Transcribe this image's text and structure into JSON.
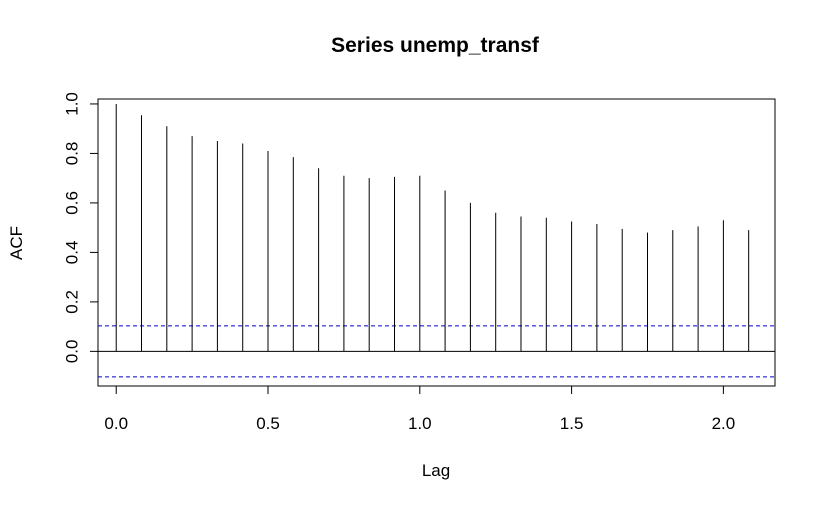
{
  "chart_data": {
    "type": "bar",
    "subtype": "acf-stem",
    "title": "Series  unemp_transf",
    "xlabel": "Lag",
    "ylabel": "ACF",
    "xlim": [
      -0.06,
      2.17
    ],
    "ylim": [
      -0.14,
      1.02
    ],
    "x_ticks": [
      0.0,
      0.5,
      1.0,
      1.5,
      2.0
    ],
    "x_tick_labels": [
      "0.0",
      "0.5",
      "1.0",
      "1.5",
      "2.0"
    ],
    "y_ticks": [
      0.0,
      0.2,
      0.4,
      0.6,
      0.8,
      1.0
    ],
    "y_tick_labels": [
      "0.0",
      "0.2",
      "0.4",
      "0.6",
      "0.8",
      "1.0"
    ],
    "lags": [
      0.0,
      0.0833,
      0.1667,
      0.25,
      0.3333,
      0.4167,
      0.5,
      0.5833,
      0.6667,
      0.75,
      0.8333,
      0.9167,
      1.0,
      1.0833,
      1.1667,
      1.25,
      1.3333,
      1.4167,
      1.5,
      1.5833,
      1.6667,
      1.75,
      1.8333,
      1.9167,
      2.0,
      2.0833
    ],
    "values": [
      1.0,
      0.955,
      0.91,
      0.87,
      0.85,
      0.84,
      0.81,
      0.785,
      0.74,
      0.71,
      0.7,
      0.705,
      0.71,
      0.65,
      0.6,
      0.56,
      0.545,
      0.54,
      0.525,
      0.515,
      0.495,
      0.48,
      0.49,
      0.505,
      0.53,
      0.49
    ],
    "confidence_bound": 0.103,
    "zero_line": true,
    "colors": {
      "bars": "#000000",
      "bounds": "#0000cc",
      "axes": "#000000"
    }
  }
}
